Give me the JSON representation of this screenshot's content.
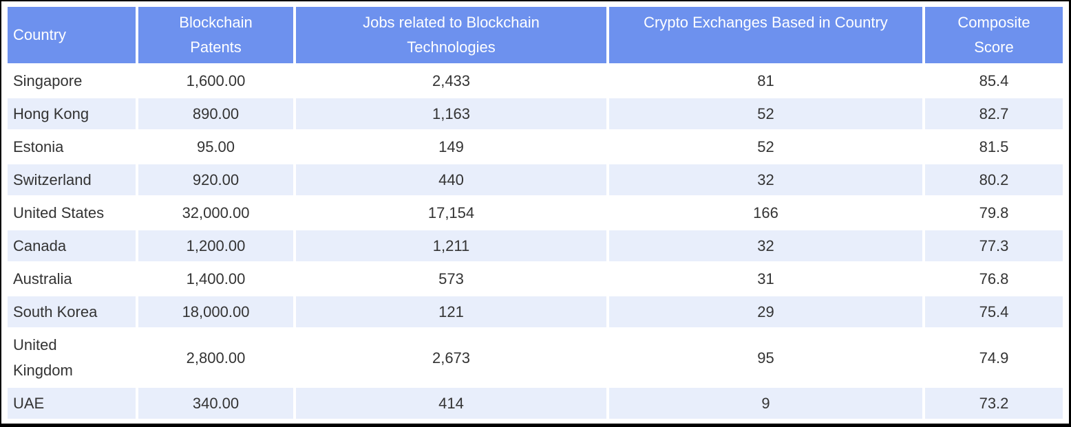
{
  "chart_data": {
    "type": "table",
    "title": "",
    "columns": [
      "Country",
      "Blockchain\nPatents",
      "Jobs related to Blockchain\nTechnologies",
      "Crypto Exchanges Based in Country",
      "Composite\nScore"
    ],
    "column_keys": [
      "country",
      "blockchain-patents",
      "jobs-related-to-blockchain",
      "crypto-exchanges",
      "composite-score"
    ],
    "rows": [
      [
        "Singapore",
        "1,600.00",
        "2,433",
        "81",
        "85.4"
      ],
      [
        "Hong Kong",
        "890.00",
        "1,163",
        "52",
        "82.7"
      ],
      [
        "Estonia",
        "95.00",
        "149",
        "52",
        "81.5"
      ],
      [
        "Switzerland",
        "920.00",
        "440",
        "32",
        "80.2"
      ],
      [
        "United States",
        "32,000.00",
        "17,154",
        "166",
        "79.8"
      ],
      [
        "Canada",
        "1,200.00",
        "1,211",
        "32",
        "77.3"
      ],
      [
        "Australia",
        "1,400.00",
        "573",
        "31",
        "76.8"
      ],
      [
        "South Korea",
        "18,000.00",
        "121",
        "29",
        "75.4"
      ],
      [
        "United Kingdom",
        "2,800.00",
        "2,673",
        "95",
        "74.9"
      ],
      [
        "UAE",
        "340.00",
        "414",
        "9",
        "73.2"
      ]
    ],
    "layout_hints": {
      "striped": true,
      "stripe_rows": "even rows (2nd, 4th, ...) are light blue",
      "numeric_columns_alignment": "center",
      "country_column_alignment": "left"
    }
  },
  "style": {
    "header_bg": "#6D91EE",
    "header_text": "#FFFFFF",
    "row_bg": "#FFFFFF",
    "row_alt_bg": "#E8EEFB",
    "body_text": "#333333",
    "frame": "#000000"
  }
}
